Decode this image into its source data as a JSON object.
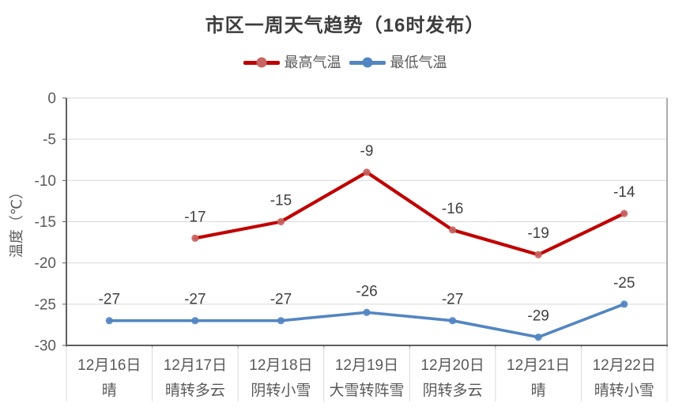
{
  "title": "市区一周天气趋势（16时发布）",
  "chart_data": {
    "type": "line",
    "title": "市区一周天气趋势（16时发布）",
    "xlabel": "",
    "ylabel": "温度（℃）",
    "ylim": [
      -30,
      0
    ],
    "yticks": [
      0,
      -5,
      -10,
      -15,
      -20,
      -25,
      -30
    ],
    "grid": true,
    "legend_position": "top",
    "categories": [
      {
        "date": "12月16日",
        "weather": "晴"
      },
      {
        "date": "12月17日",
        "weather": "晴转多云"
      },
      {
        "date": "12月18日",
        "weather": "阴转小雪"
      },
      {
        "date": "12月19日",
        "weather": "大雪转阵雪"
      },
      {
        "date": "12月20日",
        "weather": "阴转多云"
      },
      {
        "date": "12月21日",
        "weather": "晴"
      },
      {
        "date": "12月22日",
        "weather": "晴转小雪"
      }
    ],
    "series": [
      {
        "name": "最高气温",
        "values": [
          null,
          -17,
          -15,
          -9,
          -16,
          -19,
          -14
        ],
        "color": "#c00000",
        "marker_color": "#c86461",
        "line_width": 4.2
      },
      {
        "name": "最低气温",
        "values": [
          -27,
          -27,
          -27,
          -26,
          -27,
          -29,
          -25
        ],
        "color": "#5385c2",
        "marker_color": "#5385c2",
        "line_width": 3.6
      }
    ]
  },
  "style_colors": {
    "grid": "#d9d9d9",
    "axis": "#5f5f5f",
    "plot_right_border": "#7f7f7f",
    "separator": "#d9d9d9",
    "tick_label": "#595959",
    "data_label": "#404040",
    "title": "#3d3d3d"
  }
}
